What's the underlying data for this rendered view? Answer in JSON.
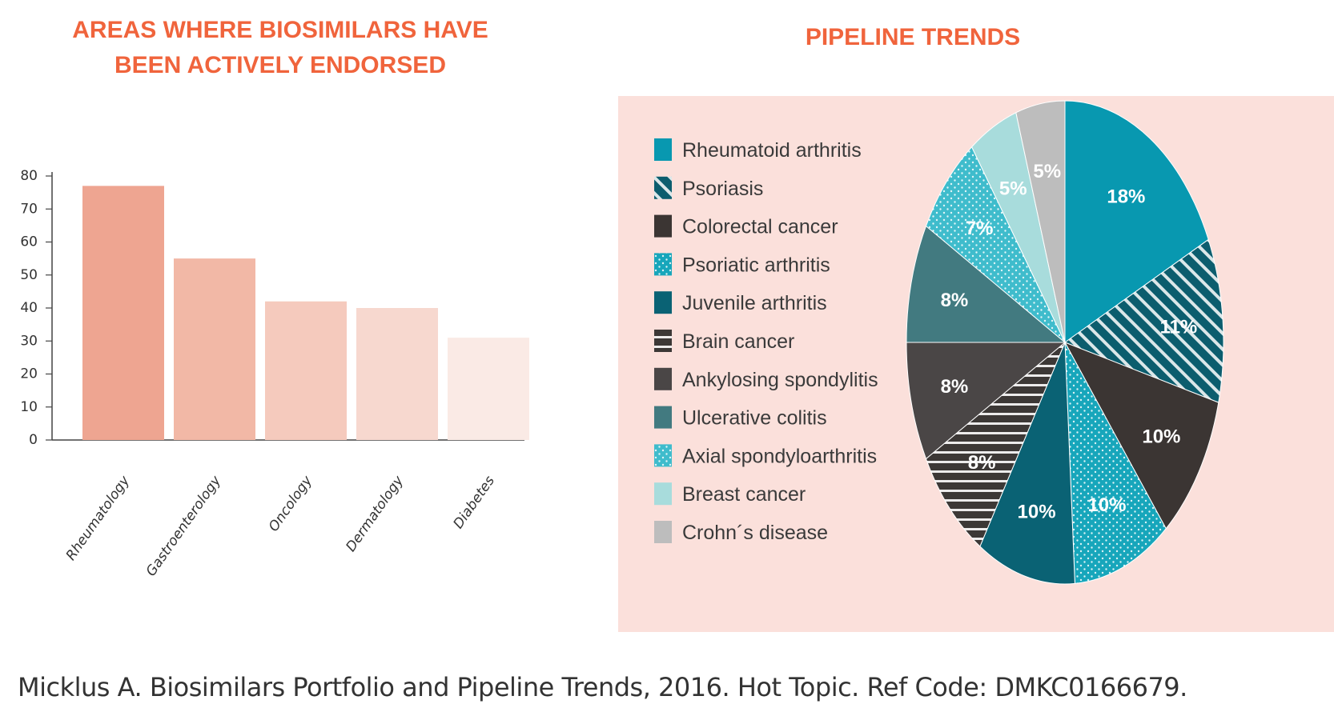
{
  "bar_title_line1": "AREAS WHERE BIOSIMILARS HAVE",
  "bar_title_line2": "BEEN ACTIVELY ENDORSED",
  "pie_title": "PIPELINE TRENDS",
  "citation": "Micklus A. Biosimilars Portfolio and Pipeline Trends, 2016. Hot Topic. Ref Code:  DMKC0166679.",
  "chart_data": [
    {
      "type": "bar",
      "title": "AREAS WHERE BIOSIMILARS HAVE BEEN ACTIVELY ENDORSED",
      "categories": [
        "Rheumatology",
        "Gastroenterology",
        "Oncology",
        "Dermatology",
        "Diabetes"
      ],
      "values": [
        77,
        55,
        42,
        40,
        31
      ],
      "colors": [
        "#eea591",
        "#f2b8a6",
        "#f5cabd",
        "#f7d8cf",
        "#faeae5"
      ],
      "ylim": [
        0,
        80
      ],
      "yticks": [
        0,
        10,
        20,
        30,
        40,
        50,
        60,
        70,
        80
      ],
      "xlabel": "",
      "ylabel": "",
      "grid": false
    },
    {
      "type": "pie",
      "title": "PIPELINE TRENDS",
      "legend_position": "left",
      "slices": [
        {
          "label": "Rheumatoid arthritis",
          "value": 18,
          "text": "18%",
          "color": "#0898b0",
          "pattern": "solid"
        },
        {
          "label": "Psoriasis",
          "value": 11,
          "text": "11%",
          "color": "#0c5d6e",
          "pattern": "diagonal"
        },
        {
          "label": "Colorectal cancer",
          "value": 10,
          "text": "10%",
          "color": "#3b3533",
          "pattern": "solid"
        },
        {
          "label": "Psoriatic arthritis",
          "value": 10,
          "text": "10%",
          "color": "#17a6bb",
          "pattern": "dots"
        },
        {
          "label": "Juvenile arthritis",
          "value": 10,
          "text": "10%",
          "color": "#0a6274",
          "pattern": "solid"
        },
        {
          "label": "Brain cancer",
          "value": 8,
          "text": "8%",
          "color": "#3c3836",
          "pattern": "horizontal"
        },
        {
          "label": "Ankylosing spondylitis",
          "value": 8,
          "text": "8%",
          "color": "#4a4646",
          "pattern": "solid"
        },
        {
          "label": "Ulcerative colitis",
          "value": 8,
          "text": "8%",
          "color": "#427a80",
          "pattern": "solid"
        },
        {
          "label": "Axial spondyloarthritis",
          "value": 7,
          "text": "7%",
          "color": "#3fbccc",
          "pattern": "dots"
        },
        {
          "label": "Breast cancer",
          "value": 5,
          "text": "5%",
          "color": "#a8dcdc",
          "pattern": "solid"
        },
        {
          "label": "Crohn´s disease",
          "value": 5,
          "text": "5%",
          "color": "#bdbdbd",
          "pattern": "solid"
        }
      ]
    }
  ]
}
